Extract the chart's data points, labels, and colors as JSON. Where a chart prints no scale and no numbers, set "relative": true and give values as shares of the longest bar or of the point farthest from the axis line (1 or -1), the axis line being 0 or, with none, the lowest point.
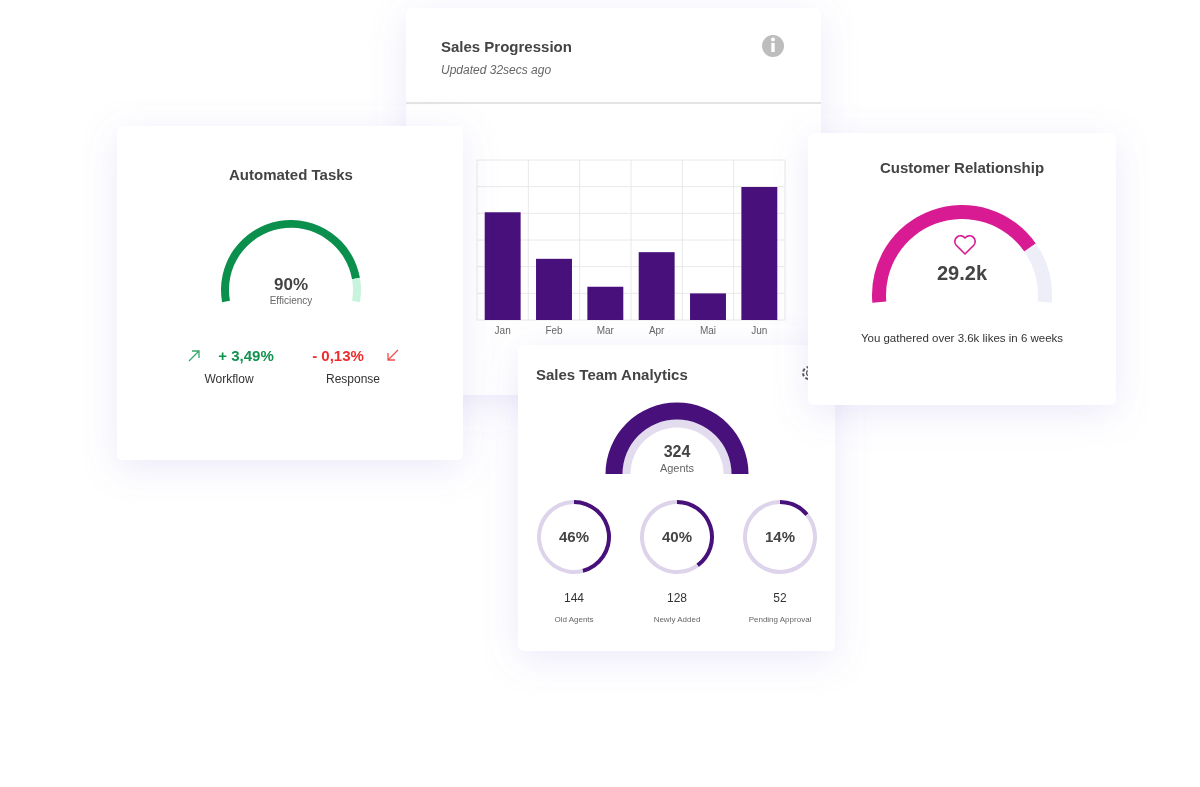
{
  "chart_data": [
    {
      "type": "bar",
      "title": "Sales Progression",
      "subtitle": "Updated 32secs ago",
      "categories": [
        "Jan",
        "Feb",
        "Mar",
        "Apr",
        "Mai",
        "Jun"
      ],
      "values": [
        0.81,
        0.46,
        0.25,
        0.51,
        0.2,
        1
      ],
      "color": "#47107a",
      "relative": true,
      "grid": true
    },
    {
      "type": "donut",
      "title": "Automated Tasks",
      "categories": [
        "Efficiency",
        null
      ],
      "values": [
        90,
        10
      ],
      "colors": [
        "#0b8f4d",
        "#c8f3dc"
      ],
      "value_labels": [
        "90%",
        null
      ],
      "annotations": [
        "+ 3,49%",
        "Workflow",
        "- 0,13%",
        "Response"
      ]
    },
    {
      "type": "donut",
      "title": "Customer Relationship",
      "categories": [
        null,
        null
      ],
      "values": [
        79,
        21
      ],
      "colors": [
        "#d81b93",
        "#eeeef8"
      ],
      "annotations": [
        "29.2k",
        "You gathered over 3.6k likes in 6 weeks"
      ]
    },
    {
      "type": "pie",
      "title": "Sales Team Analytics",
      "categories": [
        "Agents"
      ],
      "values": [
        324
      ],
      "colors": [
        "#47107a"
      ],
      "data_labels": true
    },
    {
      "type": "donut",
      "title": "Old Agents",
      "categories": [
        null,
        null
      ],
      "values": [
        46,
        54
      ],
      "colors": [
        "#47107a",
        "#ddd3ea"
      ],
      "value_labels": [
        "46%",
        null
      ],
      "annotations": [
        "144"
      ]
    },
    {
      "type": "donut",
      "title": "Newly Added",
      "categories": [
        null,
        null
      ],
      "values": [
        40,
        60
      ],
      "colors": [
        "#47107a",
        "#ddd3ea"
      ],
      "value_labels": [
        "40%",
        null
      ],
      "annotations": [
        "128"
      ]
    },
    {
      "type": "donut",
      "title": "Pending Approval",
      "categories": [
        null,
        null
      ],
      "values": [
        14,
        86
      ],
      "colors": [
        "#47107a",
        "#ddd3ea"
      ],
      "value_labels": [
        "14%",
        null
      ],
      "annotations": [
        "52"
      ]
    }
  ]
}
